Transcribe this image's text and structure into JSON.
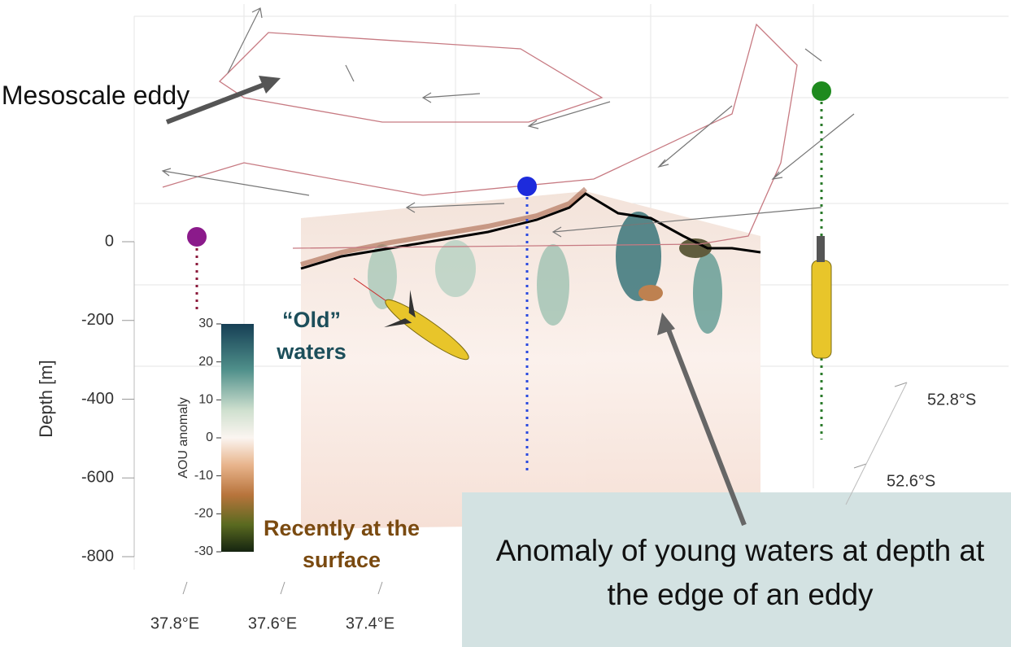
{
  "chart_data": {
    "type": "section3d",
    "ylabel": "Depth [m]",
    "ylim": [
      -800,
      0
    ],
    "yticks": [
      0,
      -200,
      -400,
      -600,
      -800
    ],
    "xticks": [
      {
        "value": 37.8,
        "label": "37.8°E"
      },
      {
        "value": 37.6,
        "label": "37.6°E"
      },
      {
        "value": 37.4,
        "label": "37.4°E"
      }
    ],
    "lat_ticks": [
      {
        "value": 52.8,
        "label": "52.8°S"
      },
      {
        "value": 52.6,
        "label": "52.6°S"
      }
    ],
    "colorbar": {
      "label": "AOU anomaly",
      "lim": [
        -30,
        30
      ],
      "ticks": [
        30,
        20,
        10,
        0,
        -10,
        -20,
        -30
      ]
    },
    "annotations": {
      "eddy": "Mesoscale eddy",
      "old": "“Old” waters",
      "recent": "Recently at the surface",
      "callout": "Anomaly of young waters at depth at the edge of an eddy"
    }
  }
}
